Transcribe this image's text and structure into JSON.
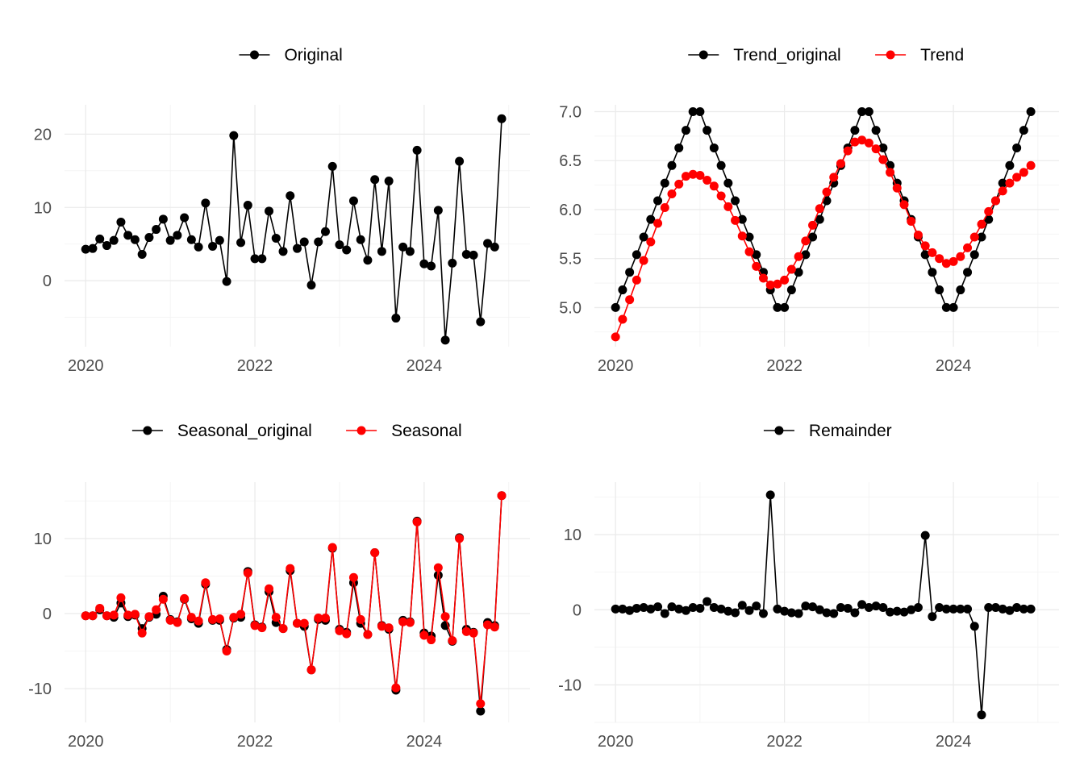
{
  "chart_data": [
    {
      "type": "line",
      "panel": "top-left",
      "title": "",
      "xlabel": "",
      "ylabel": "",
      "legend_position": "top",
      "xlim": [
        2019.75,
        2025.25
      ],
      "ylim": [
        -9,
        24
      ],
      "x_ticks": [
        2020,
        2022,
        2024
      ],
      "x_tick_labels": [
        "2020",
        "2022",
        "2024"
      ],
      "y_ticks": [
        0,
        10,
        20
      ],
      "y_tick_labels": [
        "0",
        "10",
        "20"
      ],
      "grid": true,
      "series": [
        {
          "name": "Original",
          "color": "#000000",
          "values": [
            4.3,
            4.4,
            5.7,
            4.8,
            5.5,
            8.0,
            6.2,
            5.6,
            3.6,
            5.9,
            7.0,
            8.4,
            5.5,
            6.2,
            8.6,
            5.6,
            4.6,
            10.6,
            4.7,
            5.5,
            -0.1,
            19.8,
            5.2,
            10.3,
            3.0,
            3.0,
            9.5,
            5.8,
            4.0,
            11.6,
            4.4,
            5.3,
            -0.6,
            5.3,
            6.7,
            15.6,
            4.9,
            4.2,
            10.9,
            5.6,
            2.8,
            13.8,
            4.0,
            13.6,
            -5.1,
            4.6,
            4.0,
            17.8,
            2.3,
            2.0,
            9.6,
            -8.1,
            2.4,
            16.3,
            3.6,
            3.5,
            -5.6,
            5.1,
            4.6,
            22.1
          ]
        }
      ]
    },
    {
      "type": "line",
      "panel": "top-right",
      "title": "",
      "xlabel": "",
      "ylabel": "",
      "legend_position": "top",
      "xlim": [
        2019.75,
        2025.25
      ],
      "ylim": [
        4.6,
        7.07
      ],
      "x_ticks": [
        2020,
        2022,
        2024
      ],
      "x_tick_labels": [
        "2020",
        "2022",
        "2024"
      ],
      "y_ticks": [
        5.0,
        5.5,
        6.0,
        6.5,
        7.0
      ],
      "y_tick_labels": [
        "5.0",
        "5.5",
        "6.0",
        "6.5",
        "7.0"
      ],
      "grid": true,
      "series": [
        {
          "name": "Trend_original",
          "color": "#000000",
          "values": [
            5.0,
            5.18,
            5.36,
            5.54,
            5.72,
            5.9,
            6.09,
            6.27,
            6.45,
            6.63,
            6.81,
            7.0,
            7.0,
            6.81,
            6.63,
            6.45,
            6.27,
            6.09,
            5.9,
            5.72,
            5.54,
            5.36,
            5.18,
            5.0,
            5.0,
            5.18,
            5.36,
            5.54,
            5.72,
            5.9,
            6.09,
            6.27,
            6.45,
            6.63,
            6.81,
            7.0,
            7.0,
            6.81,
            6.63,
            6.45,
            6.27,
            6.09,
            5.9,
            5.72,
            5.54,
            5.36,
            5.18,
            5.0,
            5.0,
            5.18,
            5.36,
            5.54,
            5.72,
            5.9,
            6.09,
            6.27,
            6.45,
            6.63,
            6.81,
            7.0
          ]
        },
        {
          "name": "Trend",
          "color": "#ff0000",
          "values": [
            4.7,
            4.88,
            5.08,
            5.28,
            5.48,
            5.67,
            5.86,
            6.02,
            6.16,
            6.26,
            6.34,
            6.36,
            6.35,
            6.3,
            6.24,
            6.14,
            6.03,
            5.89,
            5.73,
            5.57,
            5.42,
            5.3,
            5.23,
            5.24,
            5.28,
            5.39,
            5.52,
            5.68,
            5.84,
            6.01,
            6.18,
            6.33,
            6.47,
            6.6,
            6.69,
            6.71,
            6.68,
            6.62,
            6.51,
            6.38,
            6.22,
            6.05,
            5.88,
            5.74,
            5.63,
            5.56,
            5.5,
            5.45,
            5.47,
            5.52,
            5.61,
            5.72,
            5.85,
            5.98,
            6.09,
            6.19,
            6.27,
            6.33,
            6.38,
            6.45
          ]
        }
      ]
    },
    {
      "type": "line",
      "panel": "bottom-left",
      "title": "",
      "xlabel": "",
      "ylabel": "",
      "legend_position": "top",
      "xlim": [
        2019.75,
        2025.25
      ],
      "ylim": [
        -14.5,
        17.5
      ],
      "x_ticks": [
        2020,
        2022,
        2024
      ],
      "x_tick_labels": [
        "2020",
        "2022",
        "2024"
      ],
      "y_ticks": [
        -10,
        0,
        10
      ],
      "y_tick_labels": [
        "-10",
        "0",
        "10"
      ],
      "grid": true,
      "series": [
        {
          "name": "Seasonal_original",
          "color": "#000000",
          "values": [
            -0.3,
            -0.3,
            0.5,
            -0.3,
            -0.5,
            1.4,
            -0.4,
            -0.2,
            -2.0,
            -0.5,
            -0.1,
            2.3,
            -0.8,
            -1.1,
            1.9,
            -0.7,
            -1.3,
            3.9,
            -0.9,
            -0.9,
            -4.8,
            -0.6,
            -0.5,
            5.6,
            -1.5,
            -1.8,
            2.9,
            -1.2,
            -2.0,
            5.7,
            -1.3,
            -1.7,
            -7.5,
            -0.8,
            -0.9,
            8.7,
            -2.1,
            -2.5,
            4.1,
            -1.3,
            -2.8,
            8.1,
            -1.6,
            -2.1,
            -10.2,
            -0.9,
            -1.1,
            12.3,
            -2.6,
            -3.0,
            5.1,
            -1.6,
            -3.7,
            10.1,
            -2.1,
            -2.5,
            -13.0,
            -1.2,
            -1.6,
            15.7
          ]
        },
        {
          "name": "Seasonal",
          "color": "#ff0000",
          "values": [
            -0.3,
            -0.3,
            0.7,
            -0.3,
            -0.2,
            2.1,
            -0.2,
            -0.1,
            -2.6,
            -0.4,
            0.5,
            1.9,
            -0.9,
            -1.2,
            2.0,
            -0.5,
            -1.0,
            4.1,
            -0.8,
            -0.7,
            -5.0,
            -0.5,
            -0.1,
            5.4,
            -1.6,
            -1.9,
            3.3,
            -0.5,
            -2.0,
            6.0,
            -1.3,
            -1.3,
            -7.5,
            -0.6,
            -0.6,
            8.8,
            -2.3,
            -2.7,
            4.8,
            -0.8,
            -2.8,
            8.1,
            -1.7,
            -1.9,
            -9.9,
            -1.1,
            -1.2,
            12.2,
            -2.9,
            -3.5,
            6.1,
            -0.4,
            -3.6,
            10.0,
            -2.4,
            -2.6,
            -12.0,
            -1.5,
            -1.8,
            15.7
          ]
        }
      ]
    },
    {
      "type": "line",
      "panel": "bottom-right",
      "title": "",
      "xlabel": "",
      "ylabel": "",
      "legend_position": "top",
      "xlim": [
        2019.75,
        2025.25
      ],
      "ylim": [
        -15,
        17
      ],
      "x_ticks": [
        2020,
        2022,
        2024
      ],
      "x_tick_labels": [
        "2020",
        "2022",
        "2024"
      ],
      "y_ticks": [
        -10,
        0,
        10
      ],
      "y_tick_labels": [
        "-10",
        "0",
        "10"
      ],
      "grid": true,
      "series": [
        {
          "name": "Remainder",
          "color": "#000000",
          "values": [
            0.1,
            0.1,
            -0.1,
            0.2,
            0.3,
            0.1,
            0.4,
            -0.5,
            0.4,
            0.1,
            -0.1,
            0.3,
            0.2,
            1.1,
            0.3,
            0.1,
            -0.2,
            -0.4,
            0.6,
            -0.1,
            0.5,
            -0.5,
            15.3,
            0.1,
            -0.2,
            -0.4,
            -0.5,
            0.5,
            0.4,
            0.0,
            -0.4,
            -0.5,
            0.3,
            0.2,
            -0.4,
            0.7,
            0.3,
            0.5,
            0.3,
            -0.3,
            -0.2,
            -0.3,
            0.0,
            0.3,
            9.9,
            -0.9,
            0.3,
            0.1,
            0.1,
            0.1,
            0.1,
            -2.2,
            -14.0,
            0.3,
            0.3,
            0.1,
            -0.1,
            0.3,
            0.1,
            0.1
          ]
        }
      ]
    }
  ]
}
